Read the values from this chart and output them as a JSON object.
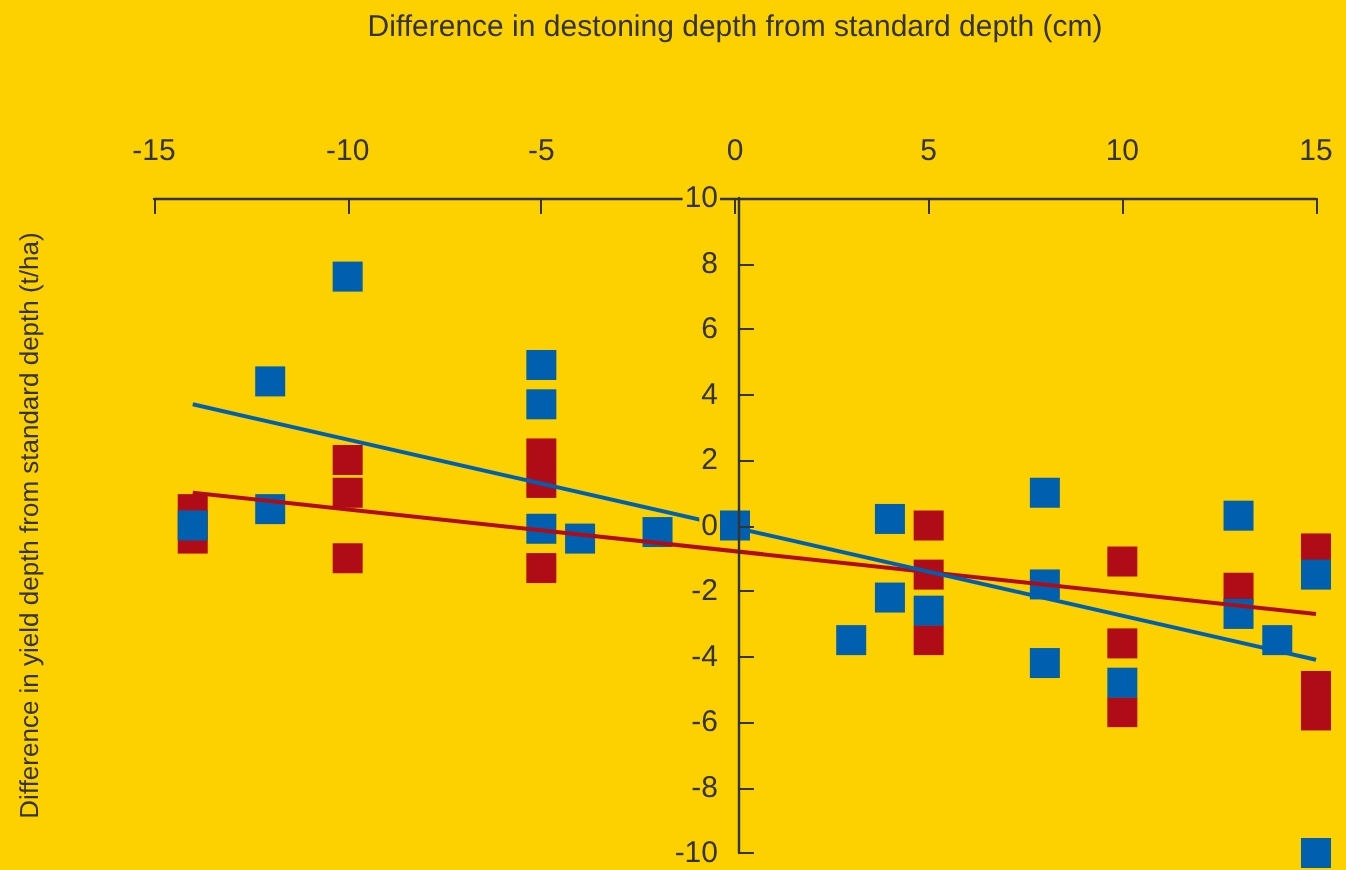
{
  "chart_data": {
    "type": "scatter",
    "xlabel": "Difference in destoning depth from standard depth (cm)",
    "ylabel": "Difference in yield depth from standard depth (t/ha)",
    "xlim": [
      -15,
      15
    ],
    "xticks": [
      -15,
      -10,
      -5,
      0,
      5,
      10,
      15
    ],
    "ylim": [
      -10,
      10
    ],
    "yticks": [
      -10,
      -8,
      -6,
      -4,
      -2,
      0,
      2,
      4,
      6,
      8,
      10
    ],
    "grid": false,
    "series": [
      {
        "marker": "square",
        "color": "#b00c18",
        "x": [
          -14,
          -14,
          -10,
          -10,
          -10,
          -5,
          -5,
          -5,
          5,
          5,
          5,
          10,
          10,
          10,
          13,
          15,
          15,
          15
        ],
        "values": [
          0.5,
          -0.4,
          2.0,
          1.0,
          -1.0,
          2.2,
          1.3,
          -1.3,
          0.0,
          -1.5,
          -3.5,
          -1.1,
          -3.6,
          -5.7,
          -1.9,
          -0.7,
          -4.9,
          -5.8
        ]
      },
      {
        "marker": "square",
        "color": "#0060b0",
        "x": [
          -14,
          -12,
          -12,
          -10,
          -5,
          -5,
          -5,
          -4,
          -2,
          0,
          3,
          4,
          4,
          5,
          8,
          8,
          8,
          10,
          13,
          13,
          14,
          15,
          15
        ],
        "values": [
          0,
          4.4,
          0.5,
          7.6,
          4.9,
          3.7,
          -0.1,
          -0.4,
          -0.2,
          0,
          -3.5,
          0.2,
          -2.2,
          -2.6,
          1.0,
          -1.8,
          -4.2,
          -4.8,
          0.3,
          -2.7,
          -3.5,
          -1.5,
          -10
        ]
      },
      {
        "type": "line",
        "marker": "none",
        "color": "#b00c18",
        "line_style": "solid",
        "x": [
          -14,
          15
        ],
        "values": [
          1.0,
          -2.7
        ]
      },
      {
        "type": "line",
        "marker": "none",
        "color": "#0060b0",
        "line_style": "solid",
        "x": [
          -14,
          15
        ],
        "values": [
          3.7,
          -4.1
        ]
      }
    ]
  }
}
